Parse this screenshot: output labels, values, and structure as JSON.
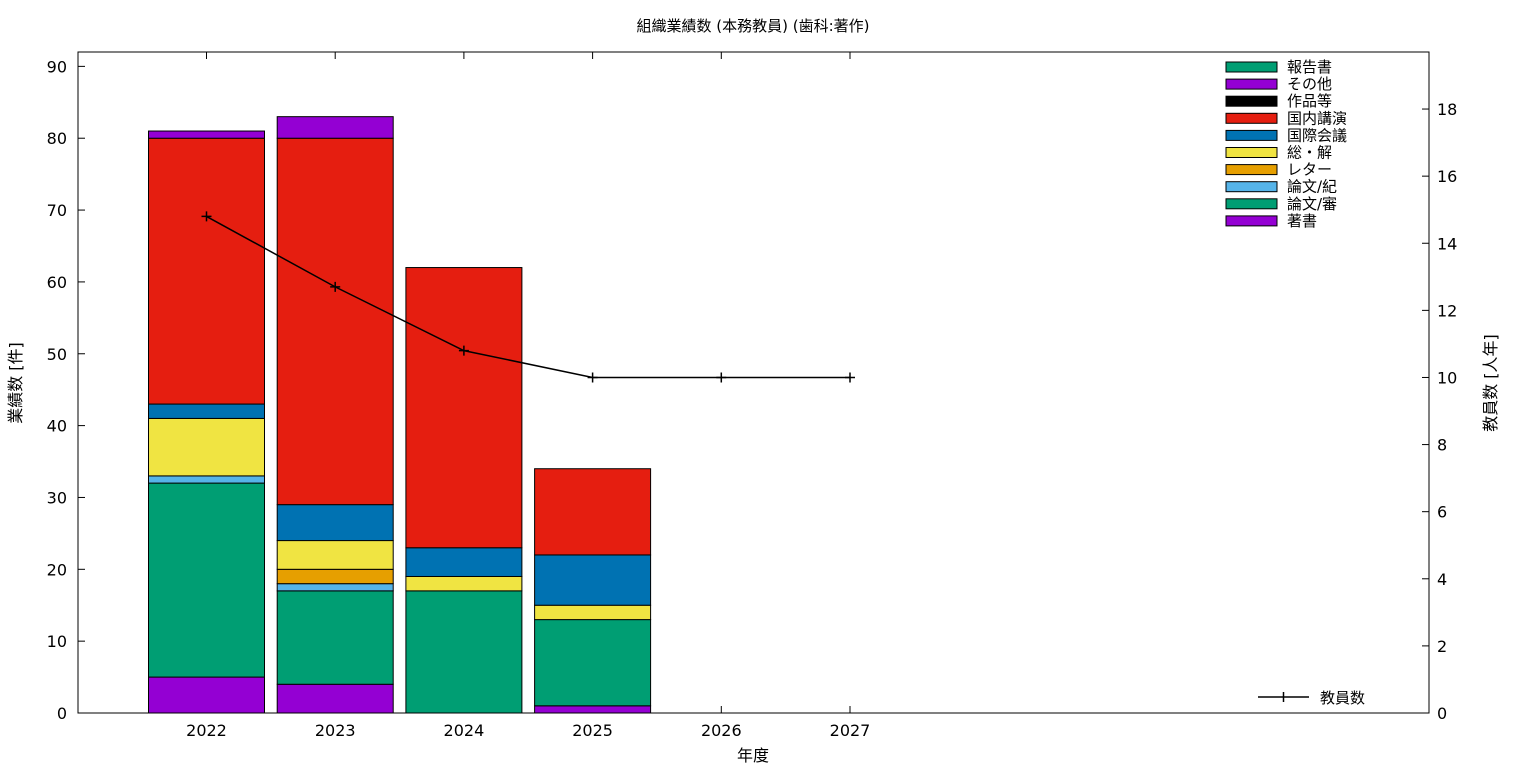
{
  "chart_data": {
    "type": "bar",
    "title": "組織業績数 (本務教員) (歯科:著作)",
    "xlabel": "年度",
    "ylabel": "業績数 [件]",
    "y2label": "教員数 [人年]",
    "categories": [
      "2022",
      "2023",
      "2024",
      "2025",
      "2026",
      "2027"
    ],
    "ylim": [
      0,
      92
    ],
    "y2lim": [
      0,
      19.7
    ],
    "yticks": [
      0,
      10,
      20,
      30,
      40,
      50,
      60,
      70,
      80,
      90
    ],
    "y2ticks": [
      0,
      2,
      4,
      6,
      8,
      10,
      12,
      14,
      16,
      18
    ],
    "legend_position": "top-right",
    "series": [
      {
        "name": "著書",
        "color": "#9400d3",
        "values": [
          5,
          4,
          0,
          1,
          0,
          0
        ]
      },
      {
        "name": "論文/審",
        "color": "#009e73",
        "values": [
          27,
          13,
          17,
          12,
          0,
          0
        ]
      },
      {
        "name": "論文/紀",
        "color": "#56b4e9",
        "values": [
          1,
          1,
          0,
          0,
          0,
          0
        ]
      },
      {
        "name": "レター",
        "color": "#e69f00",
        "values": [
          0,
          2,
          0,
          0,
          0,
          0
        ]
      },
      {
        "name": "総・解",
        "color": "#f0e442",
        "values": [
          8,
          4,
          2,
          2,
          0,
          0
        ]
      },
      {
        "name": "国際会議",
        "color": "#0072b2",
        "values": [
          2,
          5,
          4,
          7,
          0,
          0
        ]
      },
      {
        "name": "国内講演",
        "color": "#e51e10",
        "values": [
          37,
          51,
          39,
          12,
          0,
          0
        ]
      },
      {
        "name": "作品等",
        "color": "#000000",
        "values": [
          0,
          0,
          0,
          0,
          0,
          0
        ]
      },
      {
        "name": "その他",
        "color": "#9400d3",
        "values": [
          1,
          3,
          0,
          0,
          0,
          0
        ]
      },
      {
        "name": "報告書",
        "color": "#009e73",
        "values": [
          0,
          0,
          0,
          0,
          0,
          0
        ]
      }
    ],
    "line_series": {
      "name": "教員数",
      "color": "#000000",
      "axis": "y2",
      "values": [
        14.8,
        12.7,
        10.8,
        10,
        10,
        10
      ]
    }
  }
}
